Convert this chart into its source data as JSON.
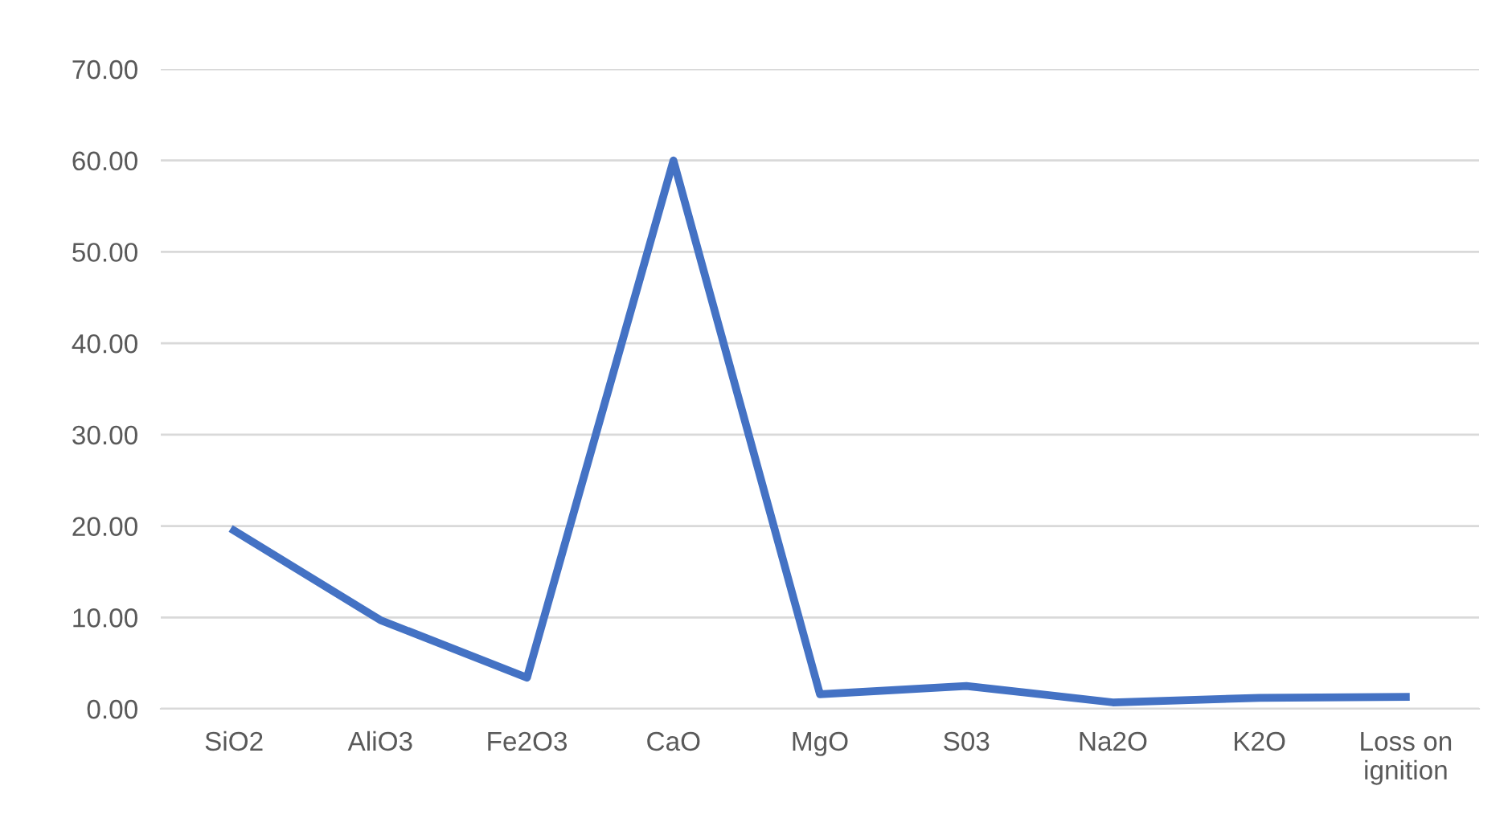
{
  "chart_data": {
    "type": "line",
    "categories": [
      "SiO2",
      "AliO3",
      "Fe2O3",
      "CaO",
      "MgO",
      "S03",
      "Na2O",
      "K2O",
      "Loss on\nignition"
    ],
    "series": [
      {
        "color": "#4472c4",
        "values": [
          19.5,
          9.7,
          3.4,
          60.0,
          1.6,
          2.5,
          0.7,
          1.2,
          1.3
        ]
      }
    ],
    "ylim": [
      0,
      70
    ],
    "yticks": [
      {
        "value": 0,
        "label": "0.00"
      },
      {
        "value": 10,
        "label": "10.00"
      },
      {
        "value": 20,
        "label": "20.00"
      },
      {
        "value": 30,
        "label": "30.00"
      },
      {
        "value": 40,
        "label": "40.00"
      },
      {
        "value": 50,
        "label": "50.00"
      },
      {
        "value": 60,
        "label": "60.00"
      },
      {
        "value": 70,
        "label": "70.00"
      }
    ],
    "grid": "y",
    "marker": "none",
    "line_style": "solid",
    "legend": false
  }
}
